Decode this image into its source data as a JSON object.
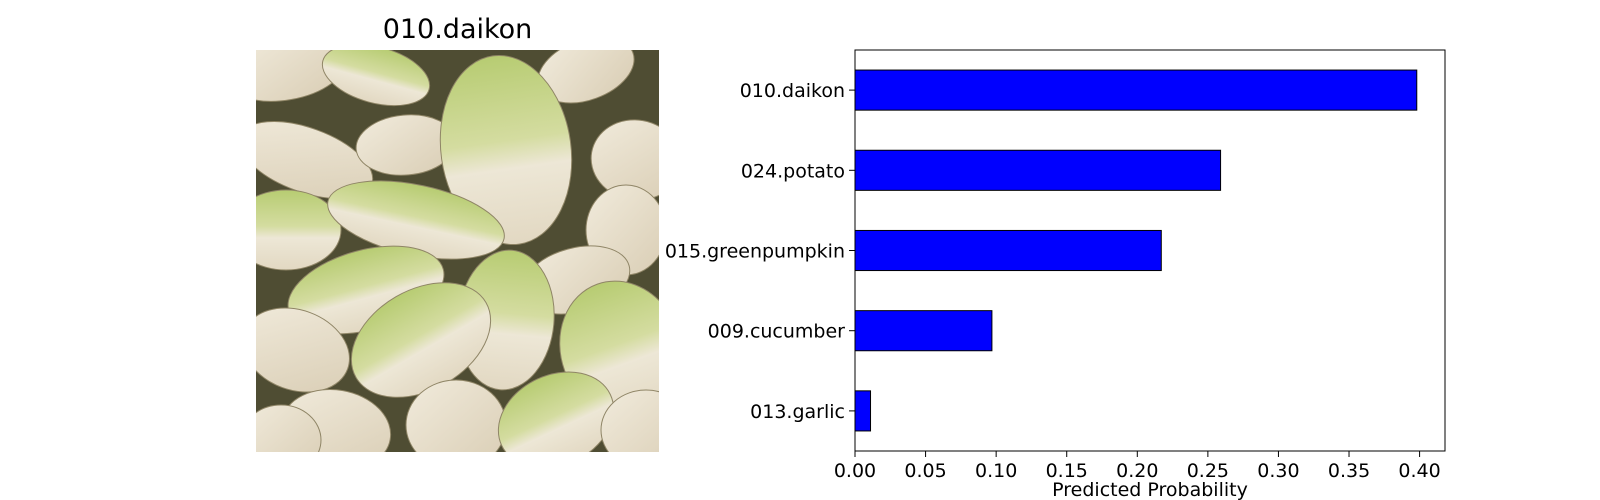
{
  "figure": {
    "image_title": "010.daikon"
  },
  "colors": {
    "bar_fill": "#0000ff",
    "bar_edge": "#000000",
    "daikon_white": "#ece6d4",
    "daikon_green": "#b9cd74",
    "background_shadow": "#5d5b3d"
  },
  "chart_data": {
    "type": "bar",
    "orientation": "horizontal",
    "categories": [
      "010.daikon",
      "024.potato",
      "015.greenpumpkin",
      "009.cucumber",
      "013.garlic"
    ],
    "values": [
      0.398,
      0.259,
      0.217,
      0.097,
      0.011
    ],
    "xlabel": "Predicted Probability",
    "ylabel": "",
    "xlim": [
      0,
      0.418
    ],
    "xticks": [
      "0.00",
      "0.05",
      "0.10",
      "0.15",
      "0.20",
      "0.25",
      "0.30",
      "0.35",
      "0.40"
    ],
    "grid": false
  }
}
